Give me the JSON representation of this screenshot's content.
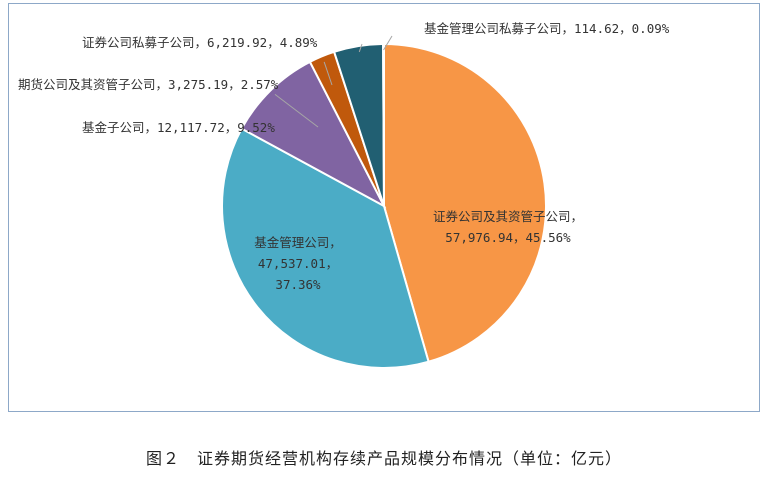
{
  "chart_data": {
    "type": "pie",
    "caption": "图２　证券期货经营机构存续产品规模分布情况（单位：亿元）",
    "slices": [
      {
        "label": "证券公司及其资管子公司",
        "value": 57976.94,
        "value_text": "57,976.94",
        "percent_text": "45.56%",
        "color": "#F79646"
      },
      {
        "label": "基金管理公司",
        "value": 47537.01,
        "value_text": "47,537.01",
        "percent_text": "37.36%",
        "color": "#4BACC6"
      },
      {
        "label": "基金子公司",
        "value": 12117.72,
        "value_text": "12,117.72",
        "percent_text": "9.52%",
        "color": "#8064A2"
      },
      {
        "label": "期货公司及其资管子公司",
        "value": 3275.19,
        "value_text": "3,275.19",
        "percent_text": "2.57%",
        "color": "#C0590C"
      },
      {
        "label": "证券公司私募子公司",
        "value": 6219.92,
        "value_text": "6,219.92",
        "percent_text": "4.89%",
        "color": "#215F72"
      },
      {
        "label": "基金管理公司私募子公司",
        "value": 114.62,
        "value_text": "114.62",
        "percent_text": "0.09%",
        "color": "#2E8FA9"
      }
    ]
  }
}
